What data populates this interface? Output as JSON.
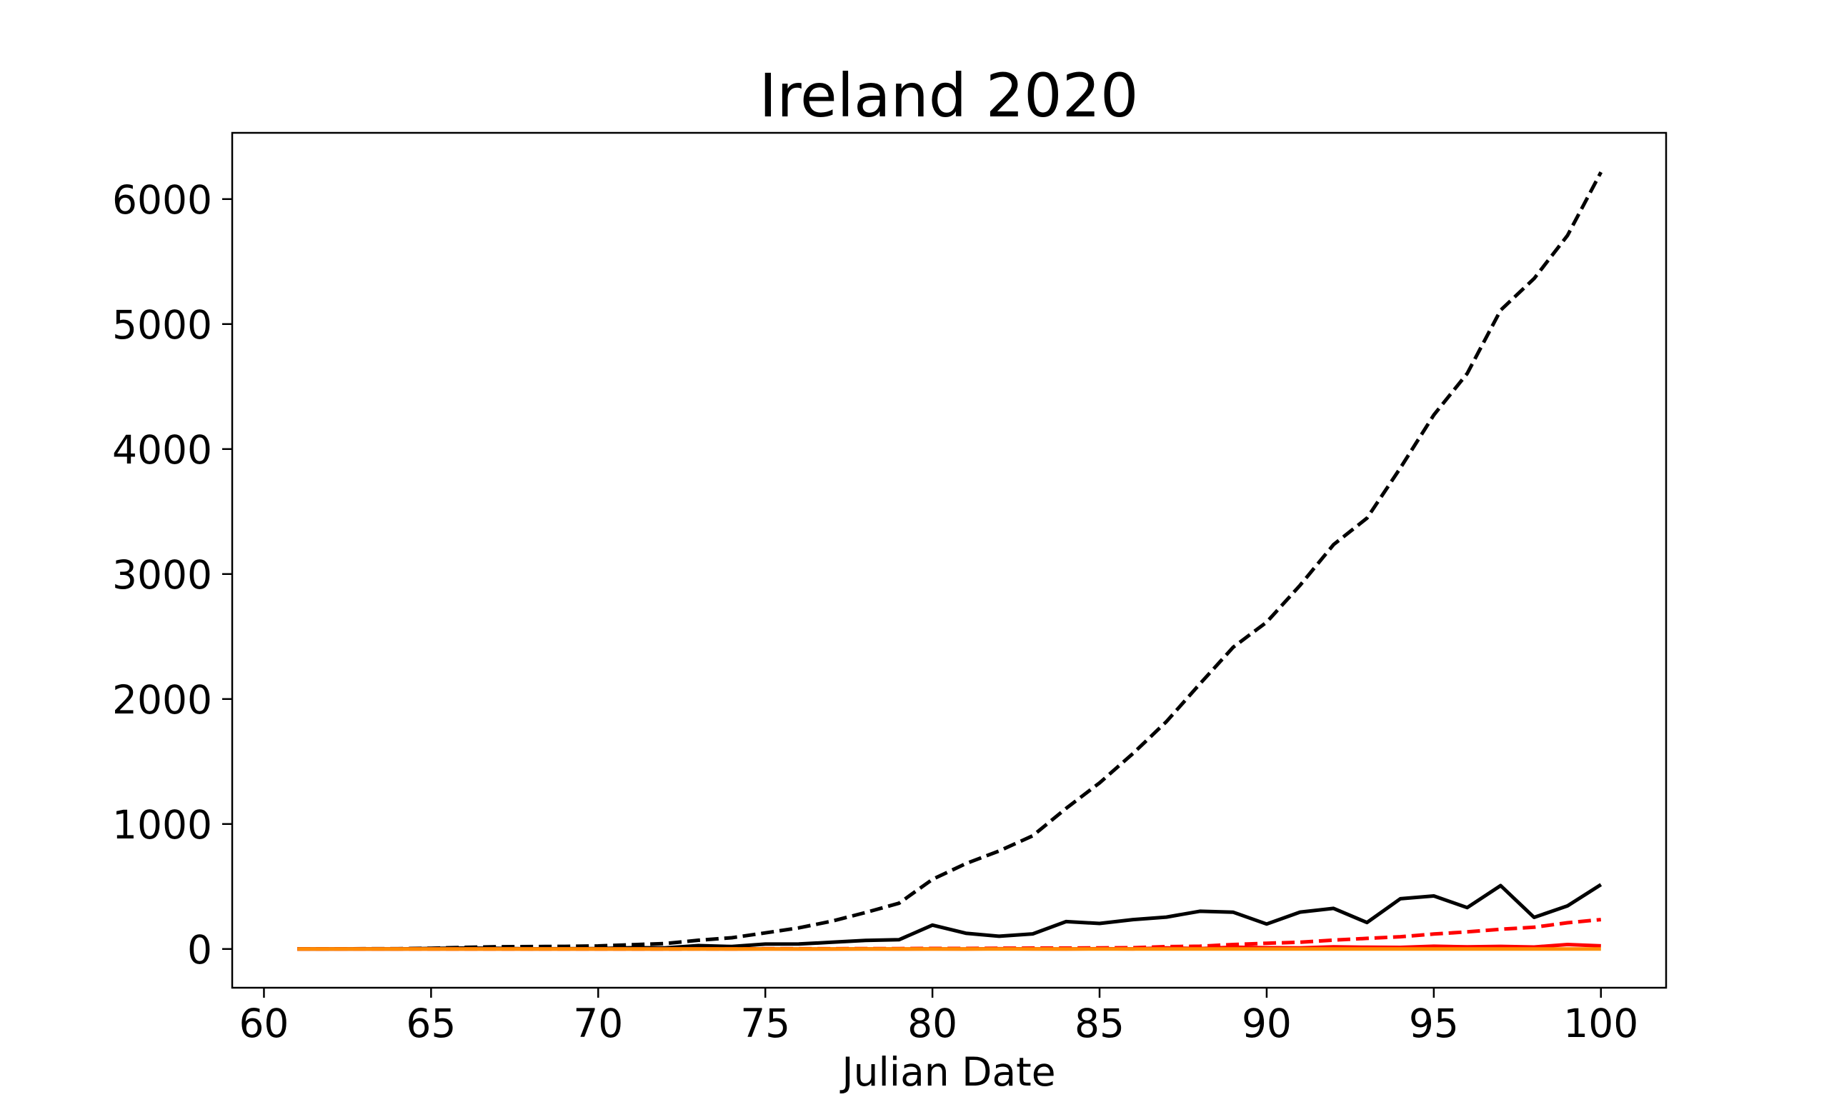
{
  "chart_data": {
    "type": "line",
    "title": "Ireland 2020",
    "xlabel": "Julian Date",
    "ylabel": "",
    "xlim": [
      59.05,
      101.95
    ],
    "ylim": [
      -310,
      6530
    ],
    "xticks": [
      60,
      65,
      70,
      75,
      80,
      85,
      90,
      95,
      100
    ],
    "yticks": [
      0,
      1000,
      2000,
      3000,
      4000,
      5000,
      6000
    ],
    "grid": false,
    "x": [
      61,
      62,
      63,
      64,
      65,
      66,
      67,
      68,
      69,
      70,
      71,
      72,
      73,
      74,
      75,
      76,
      77,
      78,
      79,
      80,
      81,
      82,
      83,
      84,
      85,
      86,
      87,
      88,
      89,
      90,
      91,
      92,
      93,
      94,
      95,
      96,
      97,
      98,
      99,
      100
    ],
    "series": [
      {
        "color": "#000000",
        "dash": "dashed",
        "values": [
          1,
          1,
          2,
          2,
          6,
          13,
          18,
          19,
          21,
          24,
          34,
          43,
          70,
          90,
          129,
          169,
          223,
          292,
          366,
          557,
          683,
          785,
          906,
          1125,
          1329,
          1564,
          1819,
          2121,
          2415,
          2615,
          2910,
          3235,
          3447,
          3849,
          4273,
          4604,
          5111,
          5364,
          5709,
          6215
        ]
      },
      {
        "color": "#000000",
        "dash": "solid",
        "values": [
          0,
          0,
          1,
          0,
          4,
          7,
          5,
          1,
          2,
          3,
          10,
          9,
          27,
          20,
          39,
          40,
          54,
          69,
          74,
          191,
          126,
          102,
          121,
          219,
          204,
          235,
          255,
          302,
          294,
          200,
          295,
          325,
          212,
          402,
          424,
          331,
          507,
          253,
          345,
          515
        ]
      },
      {
        "color": "#ff0000",
        "dash": "dashed",
        "values": [
          0,
          0,
          0,
          0,
          0,
          0,
          0,
          0,
          0,
          0,
          0,
          0,
          1,
          1,
          2,
          2,
          2,
          3,
          3,
          4,
          4,
          6,
          7,
          7,
          9,
          10,
          19,
          22,
          36,
          46,
          54,
          71,
          85,
          98,
          120,
          137,
          158,
          174,
          210,
          235
        ]
      },
      {
        "color": "#ff0000",
        "dash": "solid",
        "values": [
          0,
          0,
          0,
          0,
          0,
          0,
          0,
          0,
          0,
          0,
          0,
          0,
          1,
          0,
          1,
          0,
          0,
          1,
          0,
          1,
          0,
          2,
          1,
          0,
          2,
          1,
          9,
          3,
          14,
          10,
          8,
          17,
          14,
          13,
          22,
          17,
          21,
          16,
          36,
          25
        ]
      },
      {
        "color": "#ff8c00",
        "dash": "solid",
        "values": [
          0,
          0,
          0,
          0,
          0,
          0,
          0,
          0,
          0,
          0,
          0,
          0,
          0,
          0,
          0,
          0,
          0,
          0,
          0,
          0,
          0,
          0,
          0,
          0,
          0,
          0,
          0,
          0,
          0,
          0,
          0,
          0,
          0,
          0,
          0,
          0,
          0,
          0,
          0,
          0
        ]
      }
    ]
  }
}
